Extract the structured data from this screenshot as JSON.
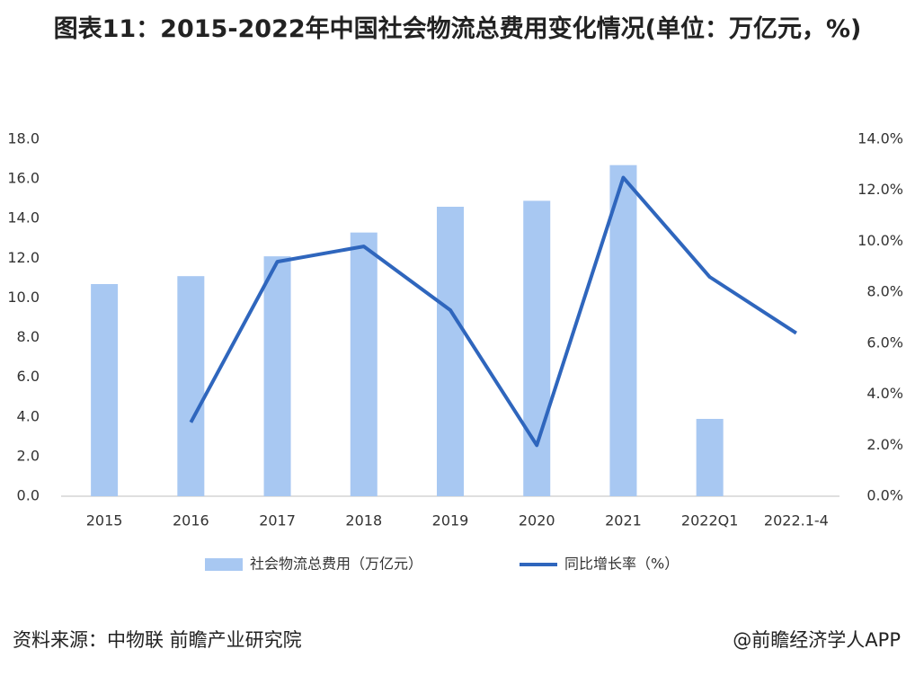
{
  "chart_data": {
    "type": "bar-line",
    "title": "图表11：2015-2022年中国社会物流总费用变化情况(单位：万亿元，%)",
    "categories": [
      "2015",
      "2016",
      "2017",
      "2018",
      "2019",
      "2020",
      "2021",
      "2022Q1",
      "2022.1-4"
    ],
    "series": [
      {
        "name": "社会物流总费用（万亿元）",
        "type": "bar",
        "color": "#a8c8f2",
        "values": [
          10.7,
          11.1,
          12.1,
          13.3,
          14.6,
          14.9,
          16.7,
          3.9,
          null
        ]
      },
      {
        "name": "同比增长率（%）",
        "type": "line",
        "axis": "y2",
        "color": "#2f66bd",
        "values": [
          null,
          2.9,
          9.2,
          9.8,
          7.3,
          2.0,
          12.5,
          8.6,
          6.4
        ]
      }
    ],
    "ylim": [
      0,
      18
    ],
    "yticks": [
      {
        "value": 0,
        "label": "0.0"
      },
      {
        "value": 2,
        "label": "2.0"
      },
      {
        "value": 4,
        "label": "4.0"
      },
      {
        "value": 6,
        "label": "6.0"
      },
      {
        "value": 8,
        "label": "8.0"
      },
      {
        "value": 10,
        "label": "10.0"
      },
      {
        "value": 12,
        "label": "12.0"
      },
      {
        "value": 14,
        "label": "14.0"
      },
      {
        "value": 16,
        "label": "16.0"
      },
      {
        "value": 18,
        "label": "18.0"
      }
    ],
    "y2lim": [
      0,
      14
    ],
    "y2ticks": [
      {
        "value": 0,
        "label": "0.0%"
      },
      {
        "value": 2,
        "label": "2.0%"
      },
      {
        "value": 4,
        "label": "4.0%"
      },
      {
        "value": 6,
        "label": "6.0%"
      },
      {
        "value": 8,
        "label": "8.0%"
      },
      {
        "value": 10,
        "label": "10.0%"
      },
      {
        "value": 12,
        "label": "12.0%"
      },
      {
        "value": 14,
        "label": "14.0%"
      }
    ],
    "grid": false,
    "legend": "bottom",
    "source": "资料来源：中物联 前瞻产业研究院",
    "credit": "@前瞻经济学人APP"
  }
}
